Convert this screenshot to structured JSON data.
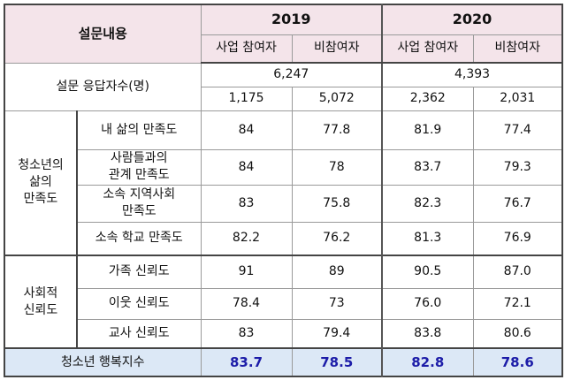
{
  "header": {
    "title": "설문내용",
    "years": [
      "2019",
      "2020"
    ],
    "subcols": [
      "사업 참여자",
      "비참여자",
      "사업 참여자",
      "비참여자"
    ]
  },
  "respondents": {
    "label": "설문 응답자수(명)",
    "totals": [
      "6,247",
      "4,393"
    ],
    "values": [
      "1,175",
      "5,072",
      "2,362",
      "2,031"
    ]
  },
  "groups": [
    {
      "label": "청소년의\n삶의\n만족도",
      "rows": [
        {
          "label": "내 삶의 만족도",
          "values": [
            "84",
            "77.8",
            "81.9",
            "77.4"
          ]
        },
        {
          "label": "사람들과의\n관계 만족도",
          "values": [
            "84",
            "78",
            "83.7",
            "79.3"
          ]
        },
        {
          "label": "소속 지역사회\n만족도",
          "values": [
            "83",
            "75.8",
            "82.3",
            "76.7"
          ]
        },
        {
          "label": "소속 학교 만족도",
          "values": [
            "82.2",
            "76.2",
            "81.3",
            "76.9"
          ]
        }
      ]
    },
    {
      "label": "사회적\n신뢰도",
      "rows": [
        {
          "label": "가족 신뢰도",
          "values": [
            "91",
            "89",
            "90.5",
            "87.0"
          ]
        },
        {
          "label": "이웃 신뢰도",
          "values": [
            "78.4",
            "73",
            "76.0",
            "72.1"
          ]
        },
        {
          "label": "교사 신뢰도",
          "values": [
            "83",
            "79.4",
            "83.8",
            "80.6"
          ]
        }
      ]
    }
  ],
  "footer": {
    "label": "청소년 행복지수",
    "values": [
      "83.7",
      "78.5",
      "82.8",
      "78.6"
    ]
  }
}
